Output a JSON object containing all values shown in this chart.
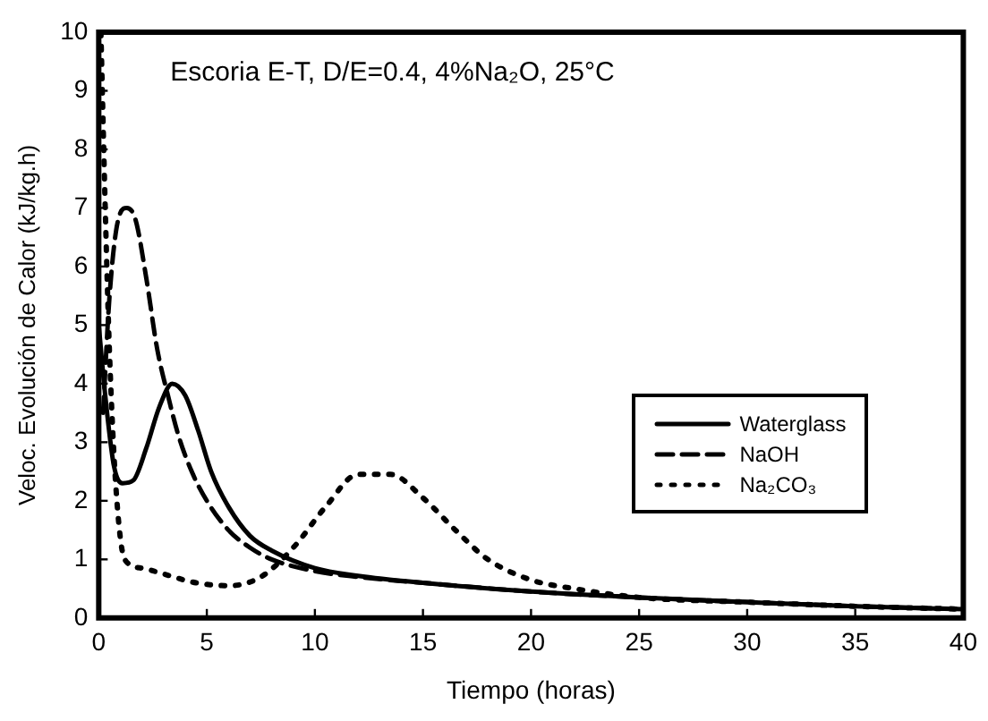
{
  "chart_data": {
    "type": "line",
    "xlabel": "Tiempo (horas)",
    "ylabel": "Veloc. Evolución de Calor (kJ/kg.h)",
    "annotations": [
      "Escoria E-T, D/E=0.4, 4%Na₂O, 25°C"
    ],
    "xlim": [
      0,
      40
    ],
    "xticks": [
      0,
      5,
      10,
      15,
      20,
      25,
      30,
      35,
      40
    ],
    "ylim": [
      0,
      10
    ],
    "yticks": [
      0,
      1,
      2,
      3,
      4,
      5,
      6,
      7,
      8,
      9,
      10
    ],
    "grid": false,
    "legend": "bottom right",
    "marker": "none",
    "series": [
      {
        "name": "Waterglass",
        "color": "#000000",
        "line_style": "solid",
        "x": [
          0,
          0.3,
          0.7,
          1.1,
          1.6,
          2.2,
          2.8,
          3.4,
          4,
          4.6,
          5.2,
          6,
          7,
          8,
          10,
          12,
          15,
          20,
          25,
          30,
          35,
          40
        ],
        "values": [
          5,
          3.8,
          2.6,
          2.3,
          2.35,
          2.9,
          3.6,
          4,
          3.8,
          3.2,
          2.5,
          1.9,
          1.4,
          1.15,
          0.85,
          0.72,
          0.6,
          0.45,
          0.35,
          0.27,
          0.2,
          0.15
        ]
      },
      {
        "name": "NaOH",
        "color": "#000000",
        "line_style": "dashed",
        "x": [
          0.2,
          0.5,
          0.9,
          1.3,
          1.7,
          2.2,
          2.7,
          3.2,
          3.7,
          4.3,
          5,
          6,
          7,
          8,
          10,
          12,
          15,
          20,
          25,
          30,
          35,
          40
        ],
        "values": [
          3.5,
          5.5,
          6.8,
          7,
          6.8,
          5.8,
          4.6,
          3.8,
          3.1,
          2.5,
          2,
          1.5,
          1.2,
          1,
          0.8,
          0.7,
          0.6,
          0.45,
          0.35,
          0.27,
          0.2,
          0.15
        ]
      },
      {
        "name": "Na₂CO₃",
        "color": "#000000",
        "line_style": "dotted",
        "x": [
          0.1,
          0.3,
          0.5,
          0.8,
          1.2,
          2,
          3,
          4.5,
          6,
          7.5,
          9,
          10.5,
          12,
          13.5,
          15,
          16.5,
          18,
          20,
          22,
          25,
          30,
          35,
          40
        ],
        "values": [
          10,
          7,
          4.5,
          2.2,
          1,
          0.85,
          0.75,
          0.6,
          0.55,
          0.7,
          1.2,
          1.9,
          2.45,
          2.45,
          2.05,
          1.5,
          1,
          0.65,
          0.5,
          0.35,
          0.27,
          0.2,
          0.15
        ]
      }
    ]
  }
}
